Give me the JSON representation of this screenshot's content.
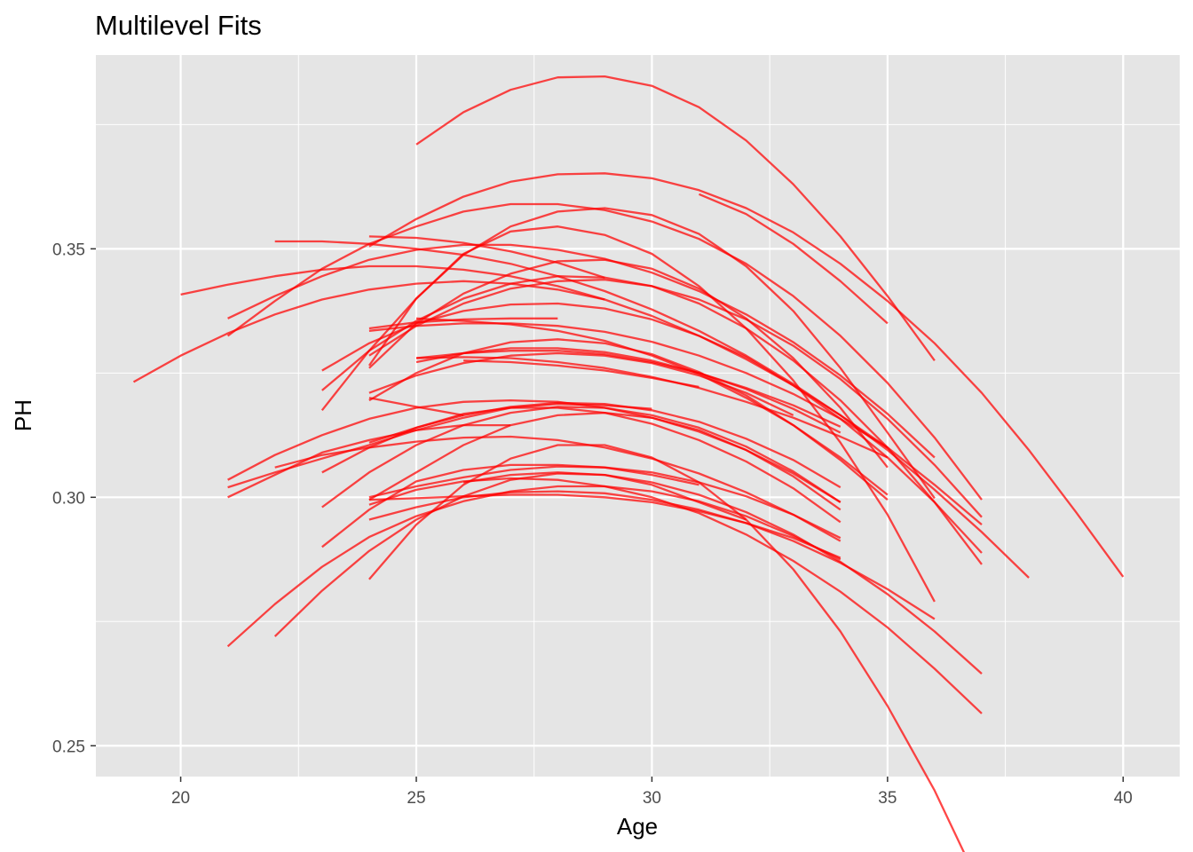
{
  "chart_data": {
    "type": "line",
    "title": "Multilevel Fits",
    "xlabel": "Age",
    "ylabel": "PH",
    "xlim": [
      18.2,
      41.2
    ],
    "ylim": [
      0.2438,
      0.389
    ],
    "x_ticks": [
      20,
      25,
      30,
      35,
      40
    ],
    "x_tick_labels": [
      "20",
      "25",
      "30",
      "35",
      "40"
    ],
    "y_ticks": [
      0.25,
      0.3,
      0.35
    ],
    "y_tick_labels": [
      "0.25",
      "0.30",
      "0.35"
    ],
    "grid": true,
    "legend": "none",
    "colors": {
      "line": "#ff0000",
      "panel": "#e5e5e5",
      "grid": "#ffffff"
    },
    "series": [
      {
        "x": [
          25,
          26,
          27,
          28,
          29,
          30,
          31,
          32,
          33,
          34,
          35,
          36
        ],
        "y": [
          0.371,
          0.3775,
          0.382,
          0.3845,
          0.3847,
          0.3828,
          0.3785,
          0.3718,
          0.363,
          0.3525,
          0.3405,
          0.3275
        ]
      },
      {
        "x": [
          24,
          25,
          26,
          27,
          28,
          29,
          30,
          31,
          32,
          33,
          34,
          35,
          36,
          37,
          38,
          39,
          40
        ],
        "y": [
          0.3505,
          0.356,
          0.3605,
          0.3635,
          0.365,
          0.3652,
          0.3642,
          0.3618,
          0.3582,
          0.3533,
          0.347,
          0.3395,
          0.331,
          0.321,
          0.3095,
          0.297,
          0.284
        ]
      },
      {
        "x": [
          31,
          32,
          33,
          34,
          35
        ],
        "y": [
          0.361,
          0.357,
          0.351,
          0.3435,
          0.335
        ]
      },
      {
        "x": [
          21,
          22,
          23,
          24,
          25,
          26,
          27,
          28,
          29,
          30,
          31,
          32,
          33,
          34,
          35,
          36,
          37
        ],
        "y": [
          0.3325,
          0.3395,
          0.346,
          0.351,
          0.3545,
          0.3575,
          0.359,
          0.359,
          0.3578,
          0.3555,
          0.352,
          0.347,
          0.3405,
          0.3325,
          0.323,
          0.312,
          0.2995
        ]
      },
      {
        "x": [
          22,
          23,
          24,
          25,
          26,
          27,
          28,
          29,
          30,
          31,
          32,
          33,
          34,
          35,
          36,
          37,
          38
        ],
        "y": [
          0.3515,
          0.3515,
          0.351,
          0.35,
          0.3488,
          0.347,
          0.3445,
          0.3415,
          0.3378,
          0.3335,
          0.3285,
          0.3228,
          0.3165,
          0.3095,
          0.3015,
          0.293,
          0.2838
        ]
      },
      {
        "x": [
          20,
          21,
          22,
          23,
          24,
          25,
          26,
          27,
          28,
          29,
          30,
          31,
          32,
          33,
          34,
          35,
          36,
          37
        ],
        "y": [
          0.3408,
          0.3428,
          0.3445,
          0.3458,
          0.3465,
          0.3465,
          0.3458,
          0.3445,
          0.3425,
          0.3398,
          0.3365,
          0.3325,
          0.3278,
          0.3225,
          0.3165,
          0.31,
          0.3025,
          0.2945
        ]
      },
      {
        "x": [
          19,
          20,
          21,
          22,
          23,
          24,
          25,
          26,
          27,
          28,
          29
        ],
        "y": [
          0.3232,
          0.3285,
          0.333,
          0.3368,
          0.3398,
          0.3418,
          0.343,
          0.3435,
          0.343,
          0.3418,
          0.3398
        ]
      },
      {
        "x": [
          21,
          22,
          23,
          24,
          25,
          26,
          27,
          28,
          29,
          30,
          31,
          32,
          33,
          34,
          35,
          36
        ],
        "y": [
          0.336,
          0.3405,
          0.3445,
          0.3478,
          0.3498,
          0.3508,
          0.3508,
          0.3498,
          0.348,
          0.3452,
          0.3415,
          0.3368,
          0.3312,
          0.3245,
          0.3168,
          0.308
        ]
      },
      {
        "x": [
          24,
          25,
          26,
          27,
          28,
          29
        ],
        "y": [
          0.3525,
          0.3522,
          0.3512,
          0.3495,
          0.3472,
          0.3442
        ]
      },
      {
        "x": [
          23,
          24,
          25,
          26,
          27,
          28,
          29,
          30,
          31,
          32,
          33,
          34,
          35,
          36
        ],
        "y": [
          0.3175,
          0.3295,
          0.34,
          0.3488,
          0.3545,
          0.3575,
          0.3582,
          0.3568,
          0.353,
          0.3465,
          0.3375,
          0.326,
          0.313,
          0.2998
        ]
      },
      {
        "x": [
          24,
          25,
          26,
          27,
          28,
          29,
          30,
          31,
          32,
          33,
          34,
          35,
          36
        ],
        "y": [
          0.3265,
          0.34,
          0.349,
          0.3535,
          0.3545,
          0.3528,
          0.349,
          0.3425,
          0.334,
          0.3235,
          0.311,
          0.2965,
          0.279
        ]
      },
      {
        "x": [
          23,
          24,
          25,
          26,
          27,
          28,
          29,
          30,
          31,
          32,
          33,
          34,
          35,
          36,
          37
        ],
        "y": [
          0.3215,
          0.3295,
          0.3355,
          0.34,
          0.343,
          0.3445,
          0.3442,
          0.3425,
          0.339,
          0.334,
          0.3275,
          0.3195,
          0.31,
          0.299,
          0.2865
        ]
      },
      {
        "x": [
          24,
          25,
          26,
          27,
          28,
          29,
          30,
          31,
          32,
          33,
          34,
          35,
          36,
          37
        ],
        "y": [
          0.3285,
          0.3345,
          0.339,
          0.342,
          0.3435,
          0.3438,
          0.3425,
          0.3398,
          0.3358,
          0.3305,
          0.3238,
          0.3158,
          0.3065,
          0.296
        ]
      },
      {
        "x": [
          23,
          24,
          25,
          26,
          27,
          28,
          29,
          30,
          31,
          32,
          33,
          34,
          35,
          36,
          37
        ],
        "y": [
          0.3255,
          0.331,
          0.335,
          0.3375,
          0.3388,
          0.339,
          0.338,
          0.3358,
          0.3325,
          0.3282,
          0.3225,
          0.3158,
          0.308,
          0.299,
          0.2888
        ]
      },
      {
        "x": [
          24,
          25,
          26,
          27,
          28,
          29,
          30,
          31,
          32,
          33,
          34,
          35
        ],
        "y": [
          0.326,
          0.335,
          0.341,
          0.345,
          0.3475,
          0.3478,
          0.346,
          0.342,
          0.336,
          0.328,
          0.318,
          0.306
        ]
      },
      {
        "x": [
          24,
          25,
          26,
          27,
          28
        ],
        "y": [
          0.334,
          0.3352,
          0.3358,
          0.336,
          0.336
        ]
      },
      {
        "x": [
          24,
          25,
          26,
          27,
          28,
          29,
          30,
          31,
          32,
          33,
          34,
          35
        ],
        "y": [
          0.3335,
          0.3345,
          0.335,
          0.335,
          0.3345,
          0.3333,
          0.3313,
          0.3285,
          0.325,
          0.3208,
          0.3158,
          0.31
        ]
      },
      {
        "x": [
          25,
          26,
          27,
          28,
          29,
          30,
          31,
          32,
          33,
          34,
          35
        ],
        "y": [
          0.336,
          0.3355,
          0.3348,
          0.3335,
          0.3315,
          0.3285,
          0.3248,
          0.32,
          0.3145,
          0.308,
          0.3005
        ]
      },
      {
        "x": [
          24,
          25,
          26,
          27,
          28,
          29,
          30,
          31,
          32,
          33,
          34,
          35
        ],
        "y": [
          0.3195,
          0.325,
          0.329,
          0.3312,
          0.3318,
          0.331,
          0.3288,
          0.3252,
          0.3205,
          0.3145,
          0.3075,
          0.2995
        ]
      },
      {
        "x": [
          24,
          25,
          26,
          27,
          28,
          29,
          30,
          31,
          32,
          33
        ],
        "y": [
          0.321,
          0.3245,
          0.327,
          0.3285,
          0.329,
          0.3285,
          0.327,
          0.3245,
          0.321,
          0.3165
        ]
      },
      {
        "x": [
          25,
          26,
          27,
          28,
          29,
          30,
          31,
          32,
          33,
          34
        ],
        "y": [
          0.3272,
          0.329,
          0.33,
          0.33,
          0.3292,
          0.3275,
          0.325,
          0.3218,
          0.3178,
          0.313
        ]
      },
      {
        "x": [
          25,
          26,
          27,
          28,
          29,
          30,
          31,
          32,
          33,
          34
        ],
        "y": [
          0.328,
          0.329,
          0.3295,
          0.3295,
          0.3288,
          0.3272,
          0.325,
          0.322,
          0.3185,
          0.3142
        ]
      },
      {
        "x": [
          25,
          26,
          27,
          28,
          29,
          30,
          31,
          32,
          33,
          34,
          35
        ],
        "y": [
          0.328,
          0.3282,
          0.328,
          0.3272,
          0.326,
          0.3242,
          0.322,
          0.3192,
          0.316,
          0.3122,
          0.308
        ]
      },
      {
        "x": [
          26,
          27,
          28,
          29,
          30,
          31
        ],
        "y": [
          0.3275,
          0.3272,
          0.3265,
          0.3255,
          0.324,
          0.3222
        ]
      },
      {
        "x": [
          24,
          25,
          26
        ],
        "y": [
          0.32,
          0.3182,
          0.3165
        ]
      },
      {
        "x": [
          22,
          23,
          24,
          25,
          26,
          27,
          28,
          29,
          30,
          31,
          32,
          33,
          34
        ],
        "y": [
          0.306,
          0.3085,
          0.31,
          0.3112,
          0.312,
          0.3122,
          0.3115,
          0.31,
          0.3078,
          0.3048,
          0.301,
          0.2965,
          0.2912
        ]
      },
      {
        "x": [
          21,
          22,
          23,
          24,
          25,
          26,
          27,
          28,
          29,
          30,
          31,
          32,
          33,
          34
        ],
        "y": [
          0.3035,
          0.3085,
          0.3125,
          0.3158,
          0.318,
          0.3192,
          0.3195,
          0.3192,
          0.318,
          0.316,
          0.3132,
          0.3095,
          0.3048,
          0.299
        ]
      },
      {
        "x": [
          21,
          22,
          23,
          24,
          25,
          26,
          27,
          28,
          29,
          30
        ],
        "y": [
          0.302,
          0.305,
          0.3078,
          0.3105,
          0.3135,
          0.316,
          0.318,
          0.3188,
          0.3185,
          0.3178
        ]
      },
      {
        "x": [
          21,
          22,
          23,
          24,
          25,
          26,
          27
        ],
        "y": [
          0.3,
          0.3045,
          0.309,
          0.3115,
          0.3135,
          0.3145,
          0.3145
        ]
      },
      {
        "x": [
          24,
          25,
          26,
          27,
          28,
          29,
          30,
          31,
          32,
          33,
          34
        ],
        "y": [
          0.311,
          0.314,
          0.3165,
          0.3182,
          0.319,
          0.3188,
          0.3175,
          0.3152,
          0.3118,
          0.3075,
          0.302
        ]
      },
      {
        "x": [
          23,
          24,
          25,
          26,
          27,
          28,
          29,
          30,
          31,
          32,
          33,
          34
        ],
        "y": [
          0.305,
          0.31,
          0.314,
          0.3168,
          0.318,
          0.318,
          0.317,
          0.3148,
          0.3115,
          0.3072,
          0.3018,
          0.295
        ]
      },
      {
        "x": [
          23,
          24,
          25,
          26,
          27,
          28,
          29,
          30,
          31,
          32,
          33,
          34
        ],
        "y": [
          0.298,
          0.305,
          0.3105,
          0.3145,
          0.317,
          0.3182,
          0.318,
          0.3165,
          0.314,
          0.3102,
          0.3052,
          0.299
        ]
      },
      {
        "x": [
          24,
          25,
          26,
          27,
          28,
          29,
          30,
          31,
          32,
          33,
          34
        ],
        "y": [
          0.2995,
          0.305,
          0.3105,
          0.3145,
          0.3165,
          0.317,
          0.316,
          0.3135,
          0.3095,
          0.3042,
          0.2975
        ]
      },
      {
        "x": [
          24,
          25,
          26,
          27,
          28,
          29,
          30,
          31,
          32,
          33,
          34
        ],
        "y": [
          0.3,
          0.3022,
          0.304,
          0.3055,
          0.3062,
          0.306,
          0.305,
          0.303,
          0.3002,
          0.2965,
          0.2918
        ]
      },
      {
        "x": [
          23,
          24,
          25,
          26,
          27,
          28,
          29,
          30,
          31
        ],
        "y": [
          0.29,
          0.2975,
          0.3032,
          0.3055,
          0.3065,
          0.3065,
          0.306,
          0.3045,
          0.3025
        ]
      },
      {
        "x": [
          24,
          25,
          26,
          27,
          28,
          29,
          30,
          31,
          32,
          33,
          34,
          35,
          36,
          37
        ],
        "y": [
          0.2835,
          0.2945,
          0.3025,
          0.3078,
          0.3105,
          0.3105,
          0.308,
          0.303,
          0.2955,
          0.2855,
          0.273,
          0.258,
          0.241,
          0.221
        ]
      },
      {
        "x": [
          24,
          25,
          26,
          27,
          28,
          29,
          30,
          31,
          32,
          33,
          34,
          35,
          36
        ],
        "y": [
          0.2955,
          0.298,
          0.3,
          0.301,
          0.3012,
          0.3008,
          0.2995,
          0.2975,
          0.2948,
          0.2912,
          0.2868,
          0.2815,
          0.2755
        ]
      },
      {
        "x": [
          21,
          22,
          23,
          24,
          25,
          26,
          27,
          28,
          29,
          30,
          31,
          32,
          33,
          34
        ],
        "y": [
          0.27,
          0.2785,
          0.286,
          0.292,
          0.2962,
          0.2992,
          0.3012,
          0.3022,
          0.3022,
          0.3012,
          0.2992,
          0.2962,
          0.2922,
          0.2875
        ]
      },
      {
        "x": [
          22,
          23,
          24,
          25,
          26,
          27,
          28,
          29,
          30,
          31,
          32
        ],
        "y": [
          0.272,
          0.2812,
          0.2892,
          0.2955,
          0.3002,
          0.3035,
          0.3048,
          0.3045,
          0.3025,
          0.299,
          0.2955
        ]
      },
      {
        "x": [
          24,
          25,
          26,
          27,
          28,
          29,
          30,
          31,
          32,
          33,
          34,
          35,
          36,
          37
        ],
        "y": [
          0.2985,
          0.3015,
          0.3032,
          0.3038,
          0.3035,
          0.3022,
          0.3,
          0.2968,
          0.2925,
          0.2872,
          0.281,
          0.2738,
          0.2655,
          0.2565
        ]
      },
      {
        "x": [
          26,
          27,
          28,
          29,
          30,
          31,
          32,
          33,
          34,
          35,
          36,
          37
        ],
        "y": [
          0.303,
          0.3045,
          0.305,
          0.3045,
          0.303,
          0.3005,
          0.297,
          0.2925,
          0.287,
          0.2805,
          0.273,
          0.2645
        ]
      },
      {
        "x": [
          24,
          25,
          26,
          27,
          28,
          29,
          30,
          31,
          32,
          33,
          34
        ],
        "y": [
          0.2995,
          0.2998,
          0.3002,
          0.3005,
          0.3005,
          0.3,
          0.299,
          0.2972,
          0.2948,
          0.2918,
          0.2878
        ]
      }
    ]
  }
}
